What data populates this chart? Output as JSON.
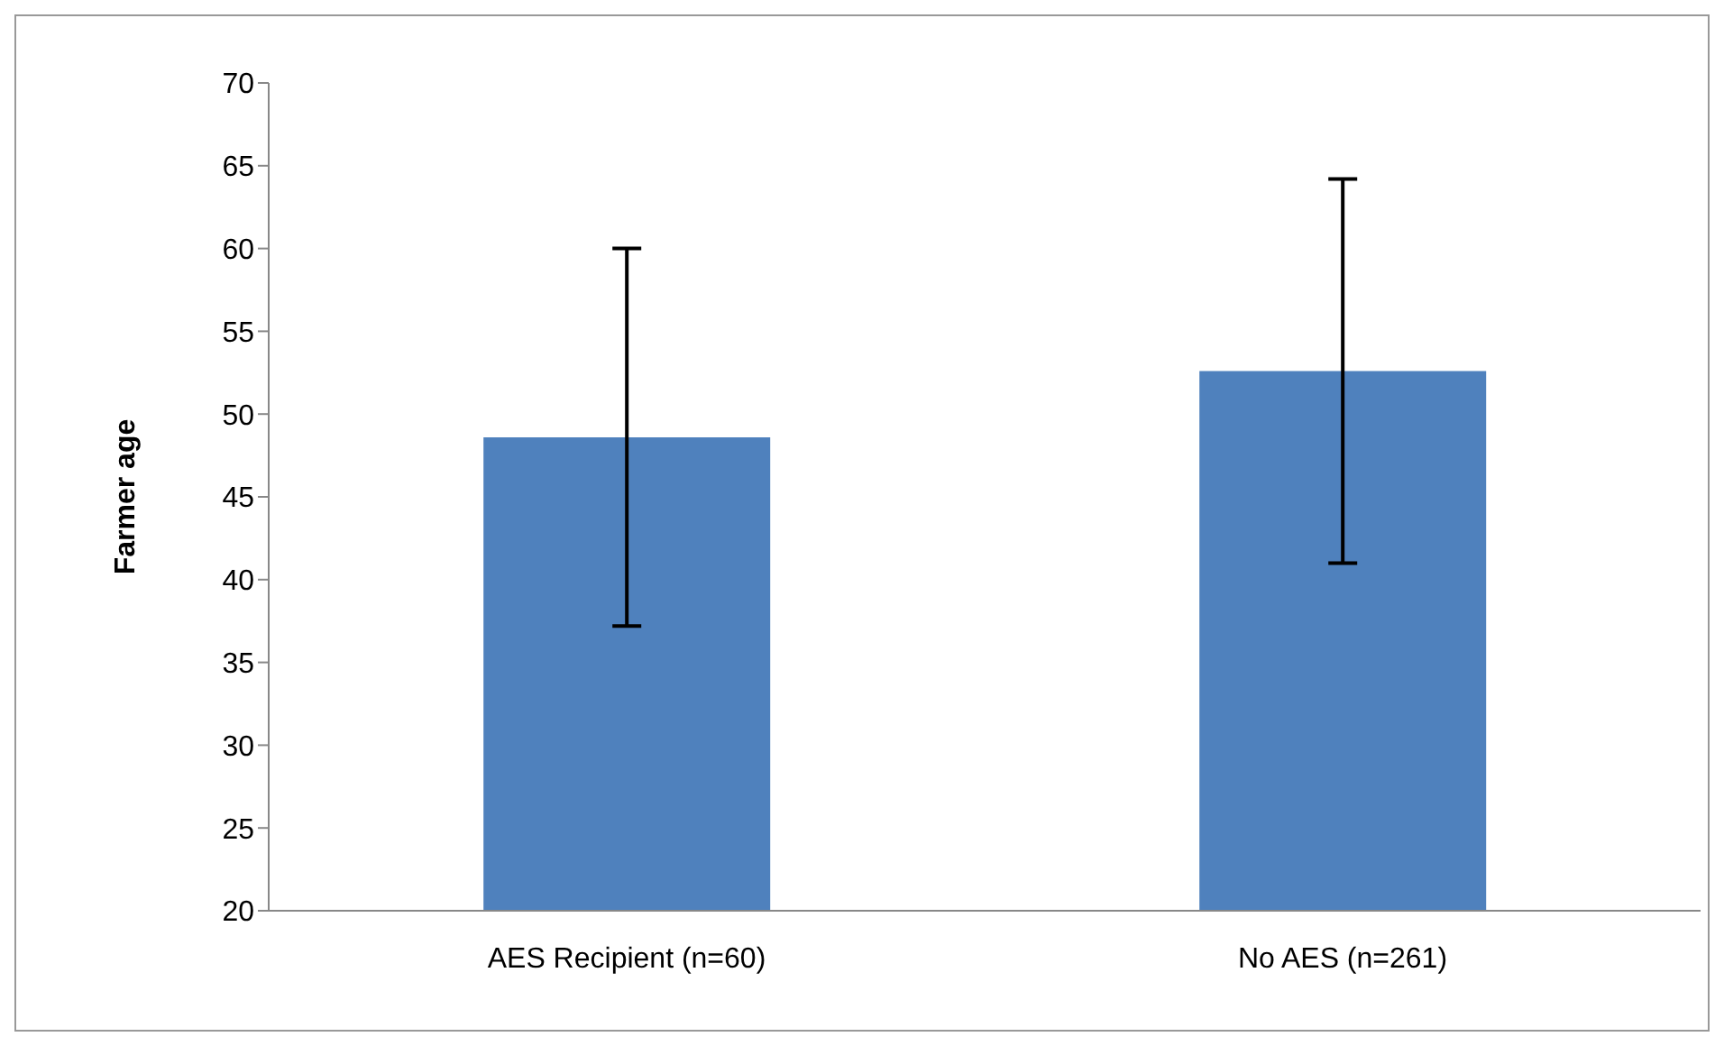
{
  "chart_data": {
    "type": "bar",
    "ylabel": "Farmer age",
    "categories": [
      "AES Recipient (n=60)",
      "No AES (n=261)"
    ],
    "values": [
      48.6,
      52.6
    ],
    "errors": [
      11.4,
      11.6
    ],
    "color": "#4f81bd",
    "ylim": [
      20,
      70
    ],
    "yticks": [
      20,
      25,
      30,
      35,
      40,
      45,
      50,
      55,
      60,
      65,
      70
    ],
    "grid": false,
    "legend": false
  }
}
